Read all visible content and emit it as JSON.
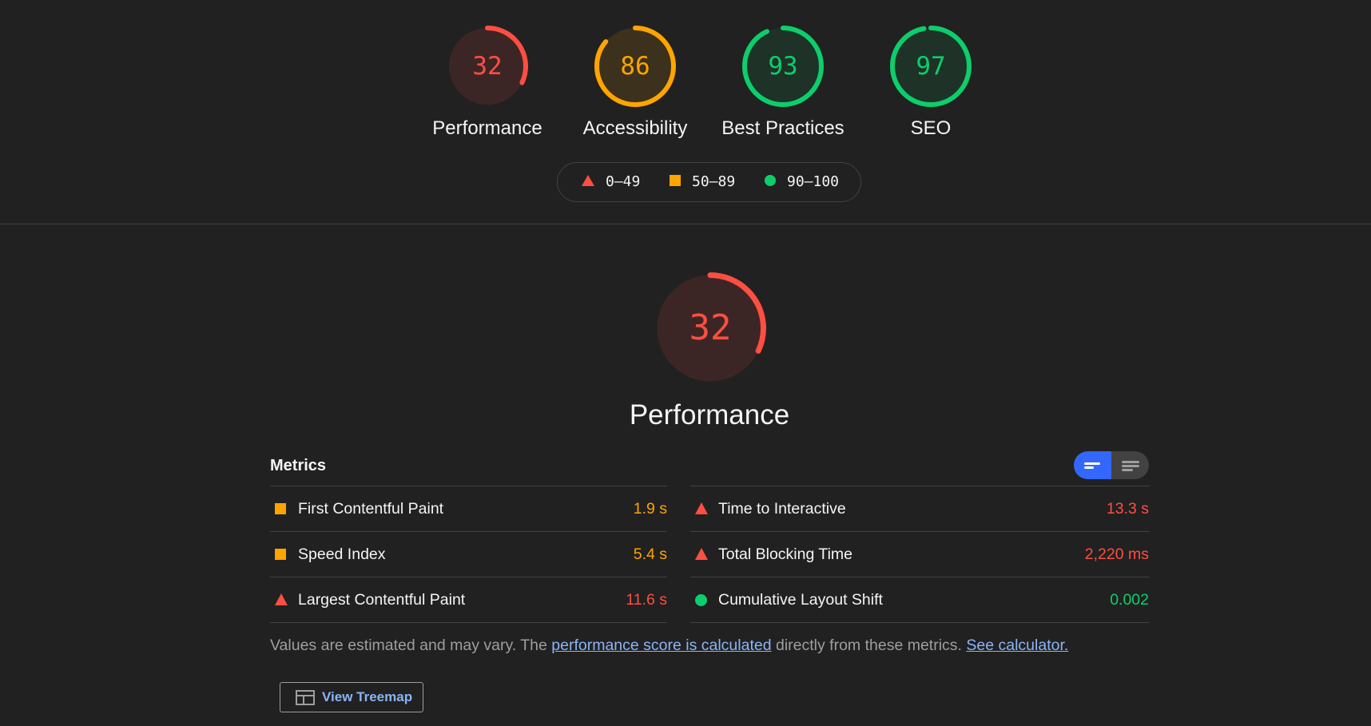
{
  "colors": {
    "fail": "#ff4e42",
    "average": "#ffa400",
    "pass": "#0cce6b",
    "accent": "#3367ff",
    "link": "#8ab4f8"
  },
  "categories": [
    {
      "label": "Performance",
      "score": 32,
      "status": "fail"
    },
    {
      "label": "Accessibility",
      "score": 86,
      "status": "average"
    },
    {
      "label": "Best Practices",
      "score": 93,
      "status": "pass"
    },
    {
      "label": "SEO",
      "score": 97,
      "status": "pass"
    }
  ],
  "legend": {
    "fail": "0–49",
    "average": "50–89",
    "pass": "90–100"
  },
  "performance": {
    "score": 32,
    "title": "Performance"
  },
  "metrics": {
    "header": "Metrics",
    "left": [
      {
        "name": "First Contentful Paint",
        "value": "1.9 s",
        "status": "average",
        "icon": "square-icon"
      },
      {
        "name": "Speed Index",
        "value": "5.4 s",
        "status": "average",
        "icon": "square-icon"
      },
      {
        "name": "Largest Contentful Paint",
        "value": "11.6 s",
        "status": "fail",
        "icon": "triangle-icon"
      }
    ],
    "right": [
      {
        "name": "Time to Interactive",
        "value": "13.3 s",
        "status": "fail",
        "icon": "triangle-icon"
      },
      {
        "name": "Total Blocking Time",
        "value": "2,220 ms",
        "status": "fail",
        "icon": "triangle-icon"
      },
      {
        "name": "Cumulative Layout Shift",
        "value": "0.002",
        "status": "pass",
        "icon": "circle-icon"
      }
    ]
  },
  "footnote": {
    "text1": "Values are estimated and may vary. The ",
    "link1": "performance score is calculated",
    "text2": " directly from these metrics. ",
    "link2": "See calculator."
  },
  "treemap": {
    "label": "View Treemap",
    "icon": "treemap-icon"
  }
}
